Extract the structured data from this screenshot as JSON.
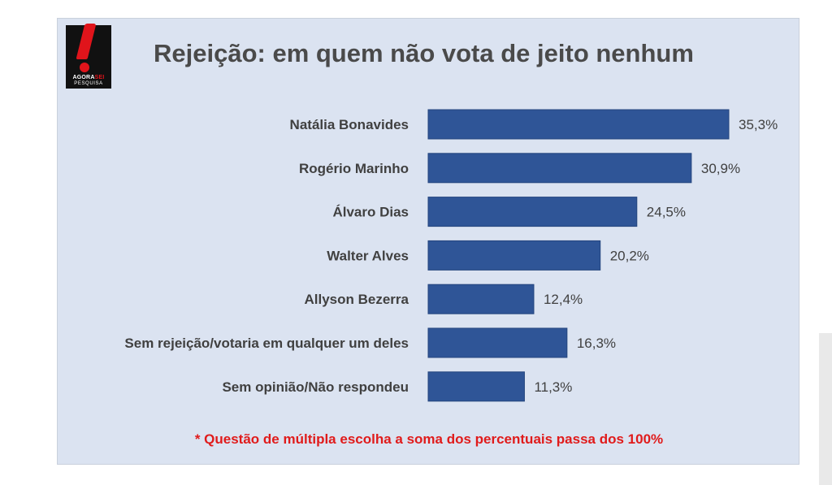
{
  "logo": {
    "brand_main": "AGORA",
    "brand_accent": "SEI",
    "brand_sub": "PESQUISA"
  },
  "chart_data": {
    "type": "bar",
    "orientation": "horizontal",
    "title": "Rejeição: em quem não vota de jeito nenhum",
    "categories": [
      "Natália Bonavides",
      "Rogério Marinho",
      "Álvaro Dias",
      "Walter Alves",
      "Allyson Bezerra",
      "Sem rejeição/votaria em qualquer um deles",
      "Sem opinião/Não respondeu"
    ],
    "values": [
      35.3,
      30.9,
      24.5,
      20.2,
      12.4,
      16.3,
      11.3
    ],
    "value_labels": [
      "35,3%",
      "30,9%",
      "24,5%",
      "20,2%",
      "12,4%",
      "16,3%",
      "11,3%"
    ],
    "xlim": [
      0,
      35.3
    ],
    "grid": false,
    "legend": "none",
    "bar_color": "#2f5597",
    "annotation": "* Questão de múltipla escolha a soma dos percentuais passa dos 100%"
  },
  "colors": {
    "background": "#dbe3f1",
    "note": "#e01b1b",
    "title": "#4a4a4a"
  }
}
